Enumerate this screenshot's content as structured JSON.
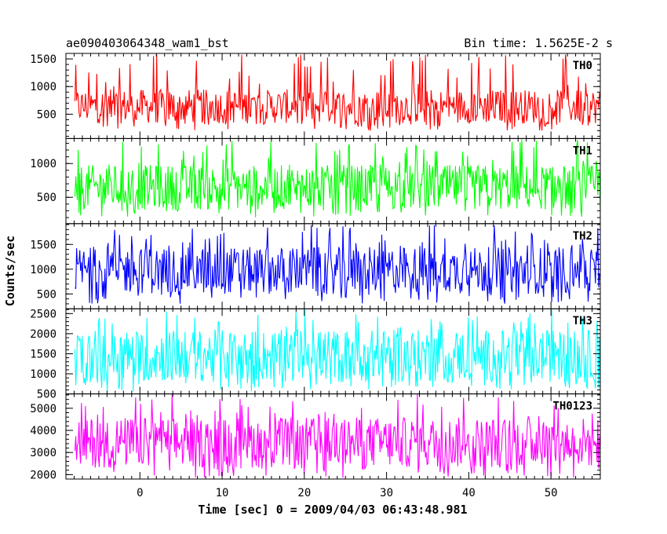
{
  "chart_data": {
    "type": "line",
    "title": "ae090403064348_wam1_bst",
    "subtitle": "Bin time: 1.5625E-2 s",
    "xlabel": "Time [sec] 0 = 2009/04/03 06:43:48.981",
    "ylabel": "Counts/sec",
    "xlim": [
      -9,
      56
    ],
    "xticks": [
      0,
      10,
      20,
      30,
      40,
      50
    ],
    "x_data_range": [
      -7.9,
      56
    ],
    "panels": [
      {
        "name": "TH0",
        "color": "#ff0000",
        "ylim": [
          60,
          1600
        ],
        "yticks": [
          500,
          1000,
          1500
        ],
        "typical_range": [
          330,
          950
        ],
        "min": 200,
        "max": 1600
      },
      {
        "name": "TH1",
        "color": "#00ff00",
        "ylim": [
          110,
          1370
        ],
        "yticks": [
          500,
          1000
        ],
        "typical_range": [
          310,
          980
        ],
        "min": 200,
        "max": 1370
      },
      {
        "name": "TH2",
        "color": "#0000ff",
        "ylim": [
          200,
          1920
        ],
        "yticks": [
          500,
          1000,
          1500
        ],
        "typical_range": [
          500,
          1450
        ],
        "min": 300,
        "max": 1920
      },
      {
        "name": "TH3",
        "color": "#00ffff",
        "ylim": [
          500,
          2620
        ],
        "yticks": [
          500,
          1000,
          1500,
          2000,
          2500
        ],
        "typical_range": [
          800,
          2100
        ],
        "min": 560,
        "max": 2620
      },
      {
        "name": "TH0123",
        "color": "#ff00ff",
        "ylim": [
          1800,
          5650
        ],
        "yticks": [
          2000,
          3000,
          4000,
          5000
        ],
        "typical_range": [
          2300,
          4600
        ],
        "min": 1850,
        "max": 5650
      }
    ]
  }
}
